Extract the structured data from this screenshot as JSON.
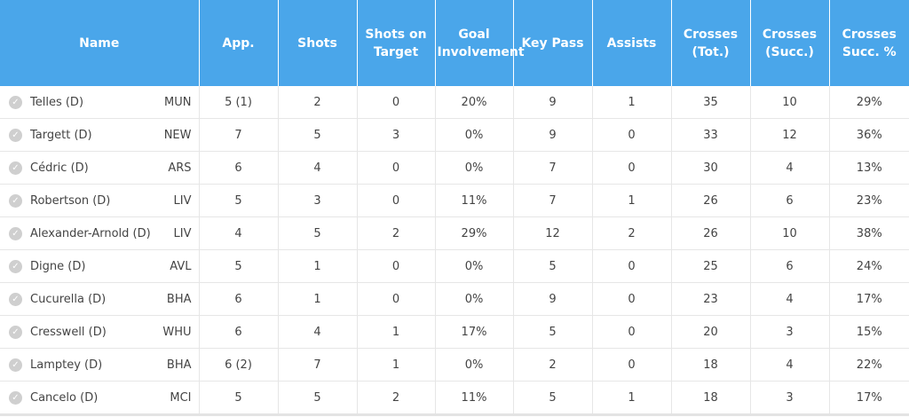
{
  "header": {
    "name": [
      "Name"
    ],
    "app": [
      "App."
    ],
    "shots": [
      "Shots"
    ],
    "shots_on_target": [
      "Shots on",
      "Target"
    ],
    "goal_involvement": [
      "Goal",
      "Involvement"
    ],
    "key_pass": [
      "Key Pass"
    ],
    "assists": [
      "Assists"
    ],
    "crosses_tot": [
      "Crosses",
      "(Tot.)"
    ],
    "crosses_succ": [
      "Crosses",
      "(Succ.)"
    ],
    "crosses_pct": [
      "Crosses",
      "Succ. %"
    ]
  },
  "columns": [
    "app",
    "shots",
    "shots_on_target",
    "goal_involvement",
    "key_pass",
    "assists",
    "crosses_tot",
    "crosses_succ",
    "crosses_pct"
  ],
  "icon": {
    "name": "check-circle-icon",
    "color": "#cfcfcf"
  },
  "rows": [
    {
      "name": "Telles (D)",
      "team": "MUN",
      "app": "5 (1)",
      "shots": "2",
      "shots_on_target": "0",
      "goal_involvement": "20%",
      "key_pass": "9",
      "assists": "1",
      "crosses_tot": "35",
      "crosses_succ": "10",
      "crosses_pct": "29%"
    },
    {
      "name": "Targett (D)",
      "team": "NEW",
      "app": "7",
      "shots": "5",
      "shots_on_target": "3",
      "goal_involvement": "0%",
      "key_pass": "9",
      "assists": "0",
      "crosses_tot": "33",
      "crosses_succ": "12",
      "crosses_pct": "36%"
    },
    {
      "name": "Cédric (D)",
      "team": "ARS",
      "app": "6",
      "shots": "4",
      "shots_on_target": "0",
      "goal_involvement": "0%",
      "key_pass": "7",
      "assists": "0",
      "crosses_tot": "30",
      "crosses_succ": "4",
      "crosses_pct": "13%"
    },
    {
      "name": "Robertson (D)",
      "team": "LIV",
      "app": "5",
      "shots": "3",
      "shots_on_target": "0",
      "goal_involvement": "11%",
      "key_pass": "7",
      "assists": "1",
      "crosses_tot": "26",
      "crosses_succ": "6",
      "crosses_pct": "23%"
    },
    {
      "name": "Alexander-Arnold (D)",
      "team": "LIV",
      "app": "4",
      "shots": "5",
      "shots_on_target": "2",
      "goal_involvement": "29%",
      "key_pass": "12",
      "assists": "2",
      "crosses_tot": "26",
      "crosses_succ": "10",
      "crosses_pct": "38%"
    },
    {
      "name": "Digne (D)",
      "team": "AVL",
      "app": "5",
      "shots": "1",
      "shots_on_target": "0",
      "goal_involvement": "0%",
      "key_pass": "5",
      "assists": "0",
      "crosses_tot": "25",
      "crosses_succ": "6",
      "crosses_pct": "24%"
    },
    {
      "name": "Cucurella (D)",
      "team": "BHA",
      "app": "6",
      "shots": "1",
      "shots_on_target": "0",
      "goal_involvement": "0%",
      "key_pass": "9",
      "assists": "0",
      "crosses_tot": "23",
      "crosses_succ": "4",
      "crosses_pct": "17%"
    },
    {
      "name": "Cresswell (D)",
      "team": "WHU",
      "app": "6",
      "shots": "4",
      "shots_on_target": "1",
      "goal_involvement": "17%",
      "key_pass": "5",
      "assists": "0",
      "crosses_tot": "20",
      "crosses_succ": "3",
      "crosses_pct": "15%"
    },
    {
      "name": "Lamptey (D)",
      "team": "BHA",
      "app": "6 (2)",
      "shots": "7",
      "shots_on_target": "1",
      "goal_involvement": "0%",
      "key_pass": "2",
      "assists": "0",
      "crosses_tot": "18",
      "crosses_succ": "4",
      "crosses_pct": "22%"
    },
    {
      "name": "Cancelo (D)",
      "team": "MCI",
      "app": "5",
      "shots": "5",
      "shots_on_target": "2",
      "goal_involvement": "11%",
      "key_pass": "5",
      "assists": "1",
      "crosses_tot": "18",
      "crosses_succ": "3",
      "crosses_pct": "17%"
    }
  ]
}
